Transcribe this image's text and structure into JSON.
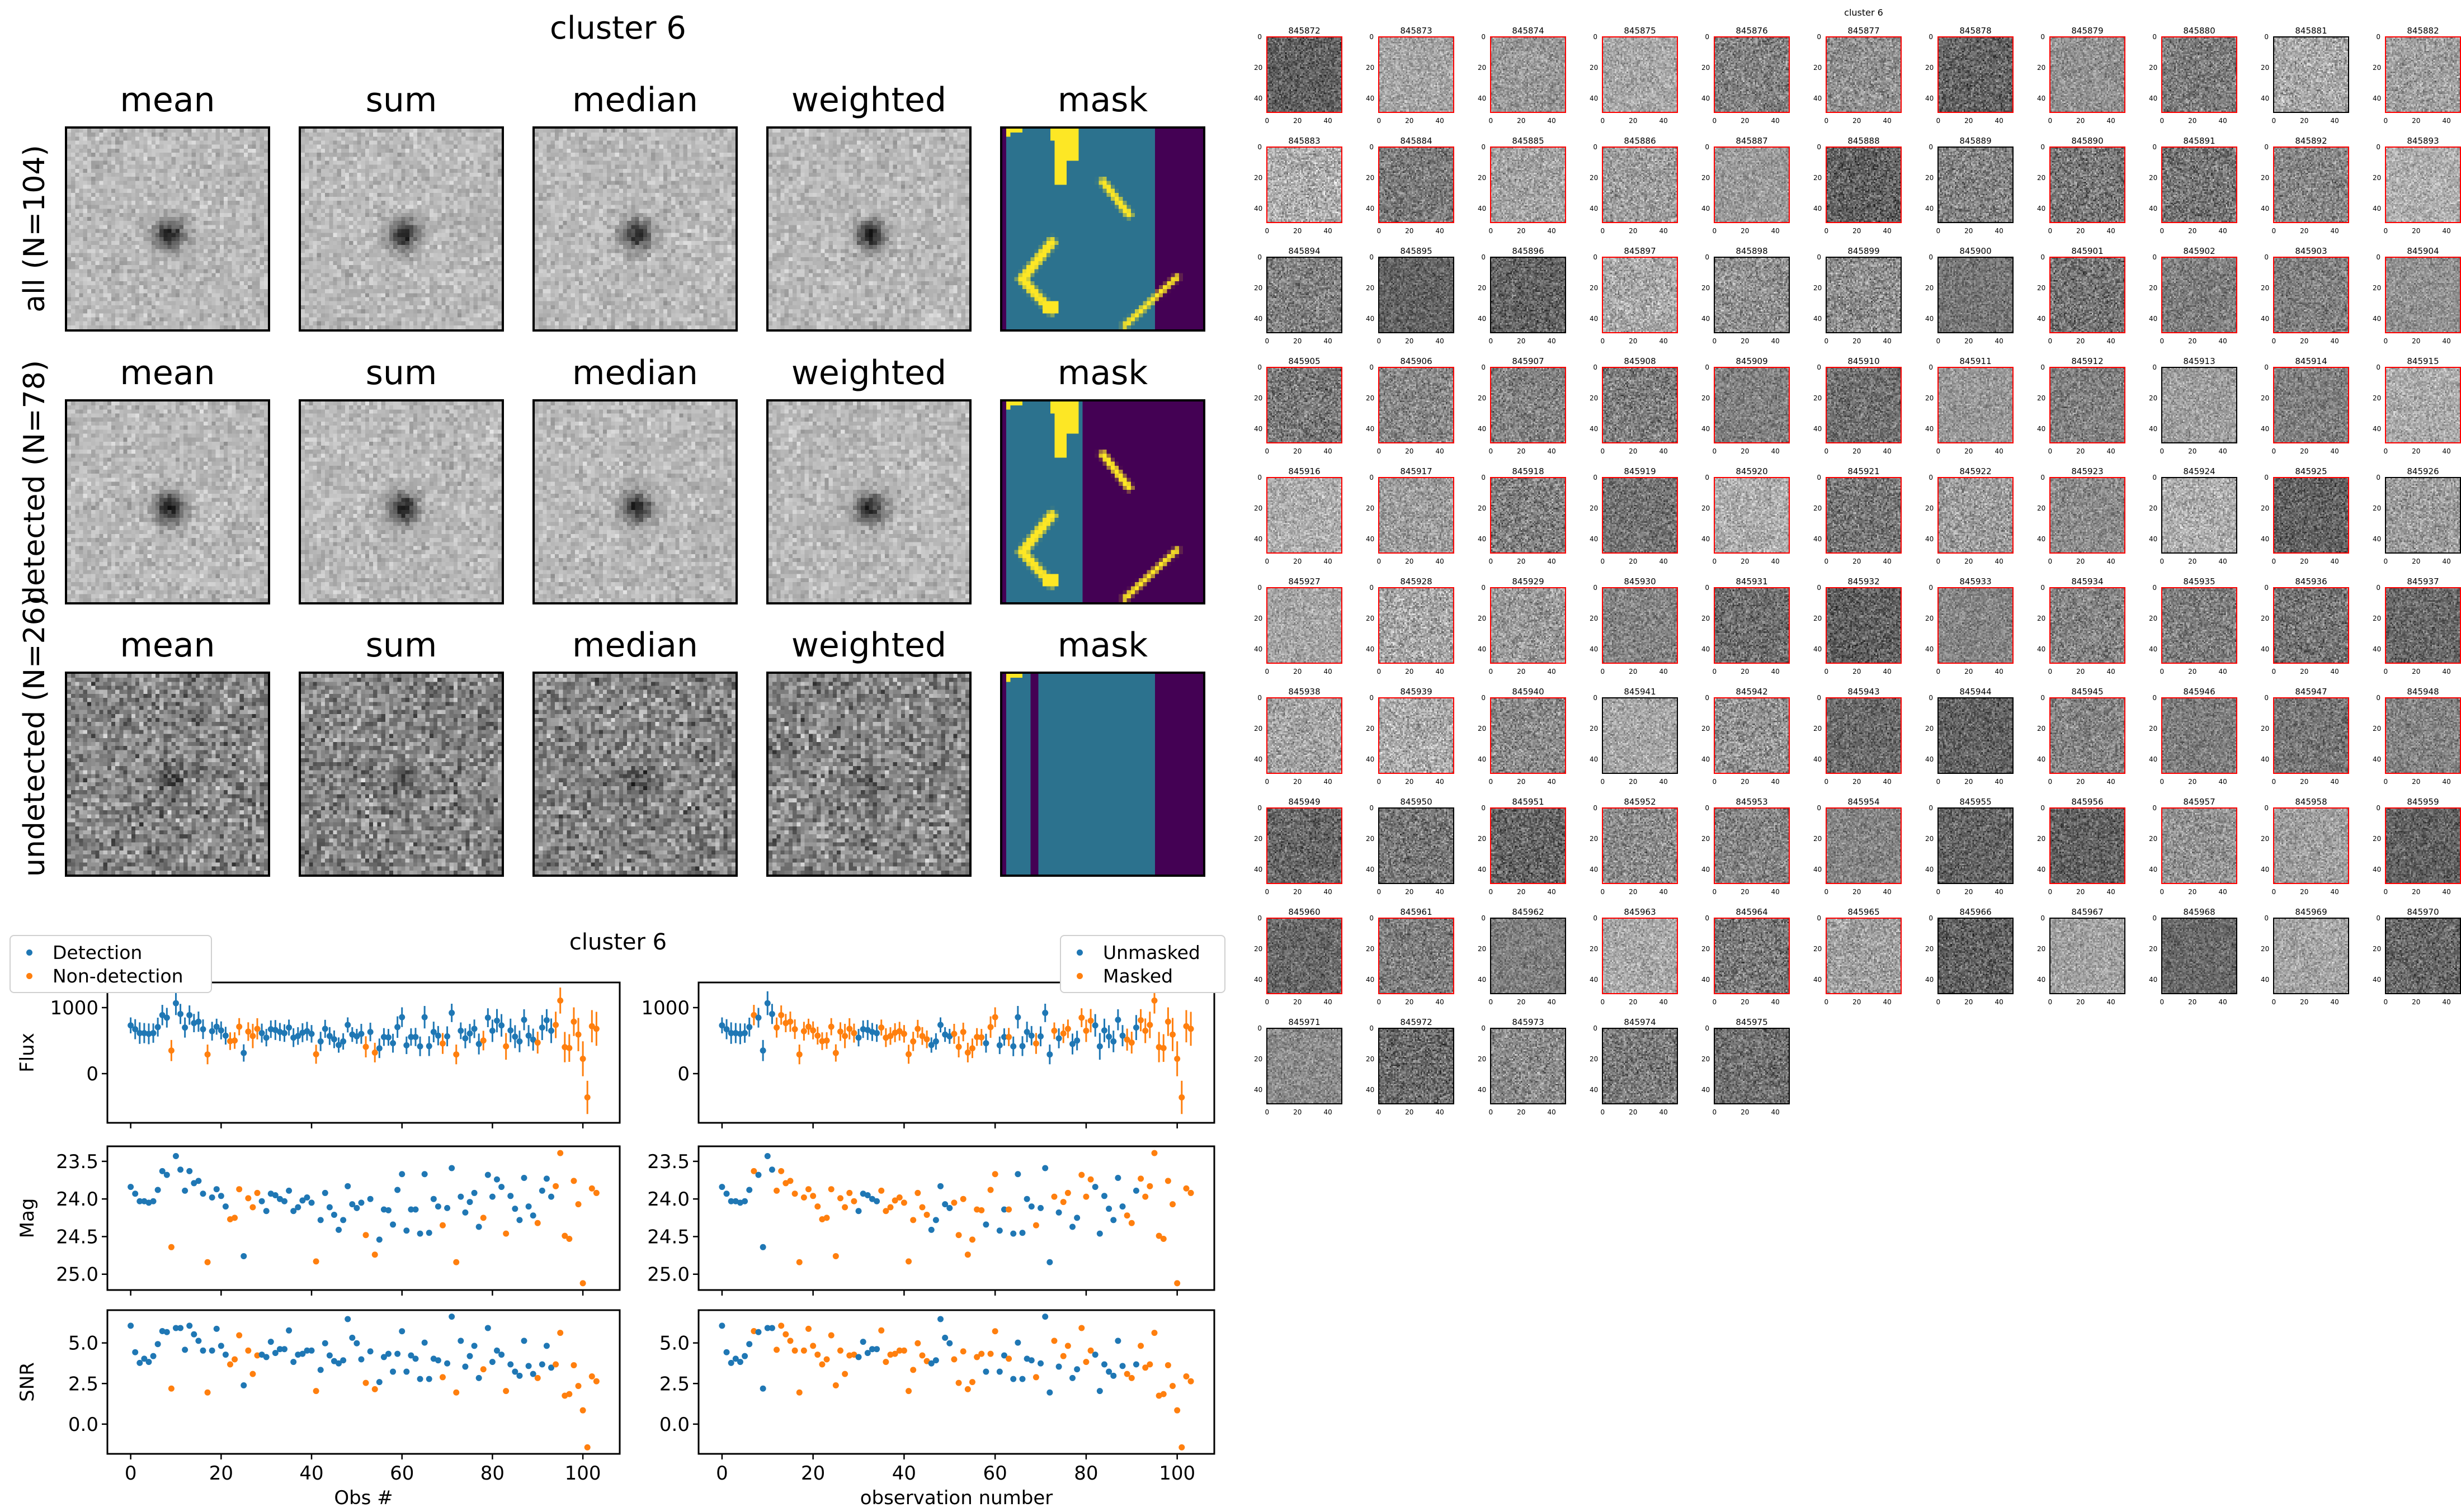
{
  "stacks": {
    "title": "cluster 6",
    "columns": [
      "mean",
      "sum",
      "median",
      "weighted",
      "mask"
    ],
    "rows": [
      "all (N=104)",
      "detected (N=78)",
      "undetected (N=26)"
    ],
    "colors": {
      "mask_low": "#440154",
      "mask_mid": "#2c728e",
      "mask_high": "#fde725"
    }
  },
  "lightcurves": {
    "title": "cluster 6",
    "left_legend": [
      "Detection",
      "Non-detection"
    ],
    "right_legend": [
      "Unmasked",
      "Masked"
    ],
    "left_xlabel": "Obs #",
    "right_xlabel": "observation number",
    "ylabels": [
      "Flux",
      "Mag",
      "SNR"
    ],
    "colors": {
      "blue": "#1f77b4",
      "orange": "#ff7f0e"
    }
  },
  "chart_data": {
    "type": "scatter",
    "x": "observation index 0-103",
    "xlim": [
      -5.15,
      108.15
    ],
    "xticks": [
      0,
      20,
      40,
      60,
      80,
      100
    ],
    "panels": [
      {
        "name": "Flux",
        "ylim": [
          -745,
          1381
        ],
        "yticks": [
          0,
          1000
        ],
        "tick_labels": [
          "0",
          "1000"
        ],
        "errorbars": true
      },
      {
        "name": "Mag",
        "ylim": [
          25.21,
          23.3
        ],
        "inverted": true,
        "yticks": [
          23.5,
          24.0,
          24.5,
          25.0
        ],
        "tick_labels": [
          "23.5",
          "24.0",
          "24.5",
          "25.0"
        ]
      },
      {
        "name": "SNR",
        "ylim": [
          -1.83,
          7.02
        ],
        "yticks": [
          0.0,
          2.5,
          5.0
        ],
        "tick_labels": [
          "0.0",
          "2.5",
          "5.0"
        ]
      }
    ],
    "flux": [
      731,
      673,
      614,
      614,
      603,
      614,
      705,
      887,
      847,
      350,
      1067,
      904,
      698,
      887,
      766,
      787,
      673,
      291,
      643,
      711,
      655,
      575,
      492,
      501,
      711,
      313,
      637,
      570,
      679,
      614,
      545,
      673,
      661,
      631,
      614,
      698,
      545,
      570,
      620,
      643,
      603,
      294,
      488,
      679,
      570,
      520,
      433,
      488,
      738,
      592,
      565,
      603,
      406,
      631,
      319,
      384,
      555,
      550,
      461,
      705,
      855,
      429,
      555,
      555,
      413,
      855,
      417,
      631,
      575,
      457,
      565,
      920,
      291,
      649,
      535,
      608,
      679,
      449,
      501,
      847,
      649,
      802,
      731,
      413,
      655,
      560,
      488,
      816,
      575,
      515,
      470,
      698,
      809,
      649,
      738,
      1107,
      402,
      388,
      787,
      592,
      225,
      -360,
      718,
      679
    ],
    "mag": [
      23.84,
      23.93,
      24.03,
      24.03,
      24.05,
      24.03,
      23.88,
      23.63,
      23.68,
      24.64,
      23.43,
      23.61,
      23.89,
      23.63,
      23.79,
      23.76,
      23.93,
      24.84,
      23.98,
      23.87,
      23.96,
      24.1,
      24.27,
      24.25,
      23.87,
      24.76,
      23.99,
      24.11,
      23.92,
      24.03,
      24.16,
      23.93,
      23.95,
      24.0,
      24.03,
      23.89,
      24.16,
      24.11,
      24.02,
      23.98,
      24.05,
      24.83,
      24.28,
      23.92,
      24.11,
      24.21,
      24.41,
      24.28,
      23.83,
      24.07,
      24.12,
      24.05,
      24.48,
      24.0,
      24.74,
      24.54,
      24.14,
      24.15,
      24.34,
      23.88,
      23.67,
      24.42,
      24.14,
      24.14,
      24.46,
      23.67,
      24.45,
      24.0,
      24.1,
      24.35,
      24.12,
      23.59,
      24.84,
      23.97,
      24.18,
      24.04,
      23.92,
      24.37,
      24.25,
      23.68,
      23.97,
      23.74,
      23.84,
      24.46,
      23.96,
      24.13,
      24.28,
      23.72,
      24.1,
      24.22,
      24.32,
      23.89,
      23.73,
      23.97,
      23.83,
      23.39,
      24.49,
      24.53,
      23.76,
      24.07,
      25.12,
      null,
      23.86,
      23.92
    ],
    "snr": [
      6.06,
      4.43,
      3.77,
      4.03,
      3.83,
      4.19,
      4.93,
      5.73,
      5.67,
      2.19,
      5.92,
      5.92,
      4.58,
      6.06,
      5.53,
      5.13,
      4.53,
      1.95,
      4.53,
      5.87,
      4.82,
      4.28,
      3.68,
      3.99,
      5.47,
      2.39,
      4.53,
      3.09,
      4.23,
      4.28,
      4.13,
      5.07,
      4.38,
      4.62,
      4.62,
      5.77,
      3.83,
      4.28,
      4.33,
      4.53,
      4.53,
      2.04,
      3.34,
      4.98,
      4.23,
      3.88,
      3.74,
      3.93,
      6.47,
      5.32,
      4.98,
      3.99,
      2.54,
      4.48,
      2.15,
      2.59,
      4.13,
      4.33,
      3.23,
      4.33,
      5.72,
      3.23,
      4.23,
      4.03,
      2.78,
      5.02,
      2.78,
      4.03,
      3.93,
      2.89,
      3.74,
      6.62,
      1.95,
      5.13,
      3.54,
      4.19,
      4.82,
      2.84,
      3.38,
      5.92,
      3.83,
      4.53,
      4.28,
      2.04,
      3.68,
      3.23,
      2.98,
      5.13,
      3.58,
      3.09,
      2.84,
      3.68,
      4.82,
      3.48,
      3.68,
      5.62,
      1.75,
      1.85,
      3.63,
      2.35,
      0.85,
      -1.43,
      2.94,
      2.64
    ],
    "detected": [
      1,
      1,
      1,
      1,
      1,
      1,
      1,
      1,
      1,
      0,
      1,
      1,
      1,
      1,
      1,
      1,
      1,
      0,
      1,
      1,
      1,
      1,
      0,
      0,
      0,
      1,
      0,
      0,
      0,
      1,
      1,
      1,
      1,
      1,
      1,
      1,
      1,
      1,
      1,
      1,
      1,
      0,
      1,
      1,
      1,
      1,
      1,
      1,
      1,
      1,
      1,
      1,
      0,
      1,
      0,
      1,
      1,
      1,
      1,
      1,
      1,
      1,
      1,
      1,
      1,
      1,
      1,
      1,
      1,
      0,
      1,
      1,
      0,
      1,
      1,
      1,
      1,
      1,
      0,
      1,
      1,
      1,
      1,
      0,
      1,
      1,
      1,
      1,
      1,
      1,
      0,
      1,
      1,
      1,
      0,
      0,
      0,
      0,
      0,
      0,
      0,
      0,
      0,
      0
    ],
    "masked": [
      0,
      0,
      0,
      0,
      0,
      0,
      0,
      1,
      0,
      0,
      0,
      0,
      1,
      1,
      1,
      1,
      1,
      1,
      1,
      1,
      1,
      1,
      1,
      1,
      1,
      1,
      1,
      1,
      1,
      1,
      0,
      0,
      0,
      0,
      0,
      1,
      1,
      1,
      1,
      1,
      1,
      1,
      1,
      1,
      1,
      1,
      0,
      0,
      0,
      0,
      0,
      1,
      1,
      1,
      1,
      1,
      1,
      1,
      0,
      1,
      1,
      0,
      0,
      1,
      0,
      0,
      0,
      0,
      0,
      1,
      0,
      0,
      0,
      1,
      0,
      1,
      1,
      0,
      0,
      1,
      1,
      1,
      0,
      0,
      0,
      0,
      0,
      0,
      0,
      1,
      1,
      0,
      1,
      1,
      1,
      1,
      1,
      1,
      1,
      1,
      1,
      1,
      1,
      1
    ]
  },
  "thumbnails": {
    "title": "cluster 6",
    "tick_labels": [
      "0",
      "20",
      "40"
    ],
    "detected_border": "#ff0000",
    "undetected_border": "#000000",
    "ids": [
      "845872",
      "845873",
      "845874",
      "845875",
      "845876",
      "845877",
      "845878",
      "845879",
      "845880",
      "845881",
      "845882",
      "845883",
      "845884",
      "845885",
      "845886",
      "845887",
      "845888",
      "845889",
      "845890",
      "845891",
      "845892",
      "845893",
      "845894",
      "845895",
      "845896",
      "845897",
      "845898",
      "845899",
      "845900",
      "845901",
      "845902",
      "845903",
      "845904",
      "845905",
      "845906",
      "845907",
      "845908",
      "845909",
      "845910",
      "845911",
      "845912",
      "845913",
      "845914",
      "845915",
      "845916",
      "845917",
      "845918",
      "845919",
      "845920",
      "845921",
      "845922",
      "845923",
      "845924",
      "845925",
      "845926",
      "845927",
      "845928",
      "845929",
      "845930",
      "845931",
      "845932",
      "845933",
      "845934",
      "845935",
      "845936",
      "845937",
      "845938",
      "845939",
      "845940",
      "845941",
      "845942",
      "845943",
      "845944",
      "845945",
      "845946",
      "845947",
      "845948",
      "845949",
      "845950",
      "845951",
      "845952",
      "845953",
      "845954",
      "845955",
      "845956",
      "845957",
      "845958",
      "845959",
      "845960",
      "845961",
      "845962",
      "845963",
      "845964",
      "845965",
      "845966",
      "845967",
      "845968",
      "845969",
      "845970",
      "845971",
      "845972",
      "845973",
      "845974",
      "845975"
    ]
  }
}
